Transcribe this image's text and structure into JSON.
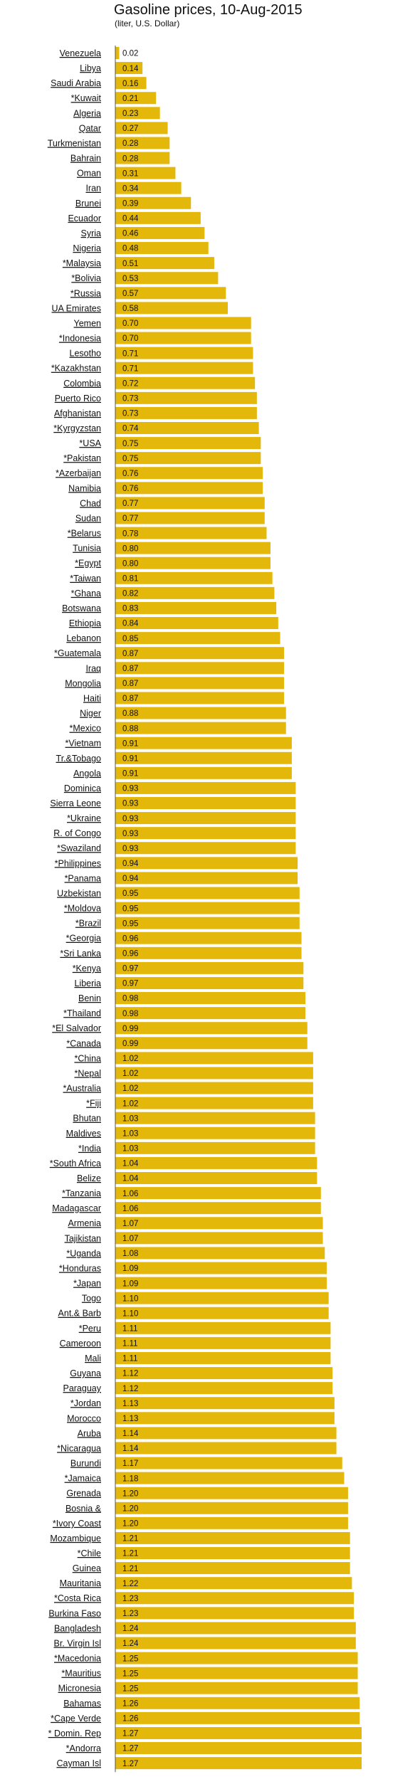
{
  "chart_data": {
    "type": "bar",
    "orientation": "horizontal",
    "title": "Gasoline prices, 10-Aug-2015",
    "subtitle": "(liter, U.S. Dollar)",
    "bar_color": "#e4b70b",
    "categories": [
      "Venezuela",
      "Libya",
      "Saudi Arabia",
      "*Kuwait",
      "Algeria",
      "Qatar",
      "Turkmenistan",
      "Bahrain",
      "Oman",
      "Iran",
      "Brunei",
      "Ecuador",
      "Syria",
      "Nigeria",
      "*Malaysia",
      "*Bolivia",
      "*Russia",
      "UA Emirates",
      "Yemen",
      "*Indonesia",
      "Lesotho",
      "*Kazakhstan",
      "Colombia",
      "Puerto Rico",
      "Afghanistan",
      "*Kyrgyzstan",
      "*USA",
      "*Pakistan",
      "*Azerbaijan",
      "Namibia",
      "Chad",
      "Sudan",
      "*Belarus",
      "Tunisia",
      "*Egypt",
      "*Taiwan",
      "*Ghana",
      "Botswana",
      "Ethiopia",
      "Lebanon",
      "*Guatemala",
      "Iraq",
      "Mongolia",
      "Haiti",
      "Niger",
      "*Mexico",
      "*Vietnam",
      "Tr.&Tobago",
      "Angola",
      "Dominica",
      "Sierra Leone",
      "*Ukraine",
      "R. of Congo",
      "*Swaziland",
      "*Philippines",
      "*Panama",
      "Uzbekistan",
      "*Moldova",
      "*Brazil",
      "*Georgia",
      "*Sri Lanka",
      "*Kenya",
      "Liberia",
      "Benin",
      "*Thailand",
      "*El Salvador",
      "*Canada",
      "*China",
      "*Nepal",
      "*Australia",
      "*Fiji",
      "Bhutan",
      "Maldives",
      "*India",
      "*South Africa",
      "Belize",
      "*Tanzania",
      "Madagascar",
      "Armenia",
      "Tajikistan",
      "*Uganda",
      "*Honduras",
      "*Japan",
      "Togo",
      "Ant.& Barb",
      "*Peru",
      "Cameroon",
      "Mali",
      "Guyana",
      "Paraguay",
      "*Jordan",
      "Morocco",
      "Aruba",
      "*Nicaragua",
      "Burundi",
      "*Jamaica",
      "Grenada",
      "Bosnia &",
      "*Ivory Coast",
      "Mozambique",
      "*Chile",
      "Guinea",
      "Mauritania",
      "*Costa Rica",
      "Burkina Faso",
      "Bangladesh",
      "Br. Virgin Isl",
      "*Macedonia",
      "*Mauritius",
      "Micronesia",
      "Bahamas",
      "*Cape Verde",
      "* Domin. Rep",
      "*Andorra",
      "Cayman Isl"
    ],
    "values": [
      0.02,
      0.14,
      0.16,
      0.21,
      0.23,
      0.27,
      0.28,
      0.28,
      0.31,
      0.34,
      0.39,
      0.44,
      0.46,
      0.48,
      0.51,
      0.53,
      0.57,
      0.58,
      0.7,
      0.7,
      0.71,
      0.71,
      0.72,
      0.73,
      0.73,
      0.74,
      0.75,
      0.75,
      0.76,
      0.76,
      0.77,
      0.77,
      0.78,
      0.8,
      0.8,
      0.81,
      0.82,
      0.83,
      0.84,
      0.85,
      0.87,
      0.87,
      0.87,
      0.87,
      0.88,
      0.88,
      0.91,
      0.91,
      0.91,
      0.93,
      0.93,
      0.93,
      0.93,
      0.93,
      0.94,
      0.94,
      0.95,
      0.95,
      0.95,
      0.96,
      0.96,
      0.97,
      0.97,
      0.98,
      0.98,
      0.99,
      0.99,
      1.02,
      1.02,
      1.02,
      1.02,
      1.03,
      1.03,
      1.03,
      1.04,
      1.04,
      1.06,
      1.06,
      1.07,
      1.07,
      1.08,
      1.09,
      1.09,
      1.1,
      1.1,
      1.11,
      1.11,
      1.11,
      1.12,
      1.12,
      1.13,
      1.13,
      1.14,
      1.14,
      1.17,
      1.18,
      1.2,
      1.2,
      1.2,
      1.21,
      1.21,
      1.21,
      1.22,
      1.23,
      1.23,
      1.24,
      1.24,
      1.25,
      1.25,
      1.25,
      1.26,
      1.26,
      1.27,
      1.27,
      1.27
    ],
    "value_labels": [
      "0.02",
      "0.14",
      "0.16",
      "0.21",
      "0.23",
      "0.27",
      "0.28",
      "0.28",
      "0.31",
      "0.34",
      "0.39",
      "0.44",
      "0.46",
      "0.48",
      "0.51",
      "0.53",
      "0.57",
      "0.58",
      "0.70",
      "0.70",
      "0.71",
      "0.71",
      "0.72",
      "0.73",
      "0.73",
      "0.74",
      "0.75",
      "0.75",
      "0.76",
      "0.76",
      "0.77",
      "0.77",
      "0.78",
      "0.80",
      "0.80",
      "0.81",
      "0.82",
      "0.83",
      "0.84",
      "0.85",
      "0.87",
      "0.87",
      "0.87",
      "0.87",
      "0.88",
      "0.88",
      "0.91",
      "0.91",
      "0.91",
      "0.93",
      "0.93",
      "0.93",
      "0.93",
      "0.93",
      "0.94",
      "0.94",
      "0.95",
      "0.95",
      "0.95",
      "0.96",
      "0.96",
      "0.97",
      "0.97",
      "0.98",
      "0.98",
      "0.99",
      "0.99",
      "1.02",
      "1.02",
      "1.02",
      "1.02",
      "1.03",
      "1.03",
      "1.03",
      "1.04",
      "1.04",
      "1.06",
      "1.06",
      "1.07",
      "1.07",
      "1.08",
      "1.09",
      "1.09",
      "1.10",
      "1.10",
      "1.11",
      "1.11",
      "1.11",
      "1.12",
      "1.12",
      "1.13",
      "1.13",
      "1.14",
      "1.14",
      "1.17",
      "1.18",
      "1.20",
      "1.20",
      "1.20",
      "1.21",
      "1.21",
      "1.21",
      "1.22",
      "1.23",
      "1.23",
      "1.24",
      "1.24",
      "1.25",
      "1.25",
      "1.25",
      "1.26",
      "1.26",
      "1.27",
      "1.27",
      "1.27"
    ],
    "xlim": [
      0,
      1.27
    ],
    "grid": false
  }
}
